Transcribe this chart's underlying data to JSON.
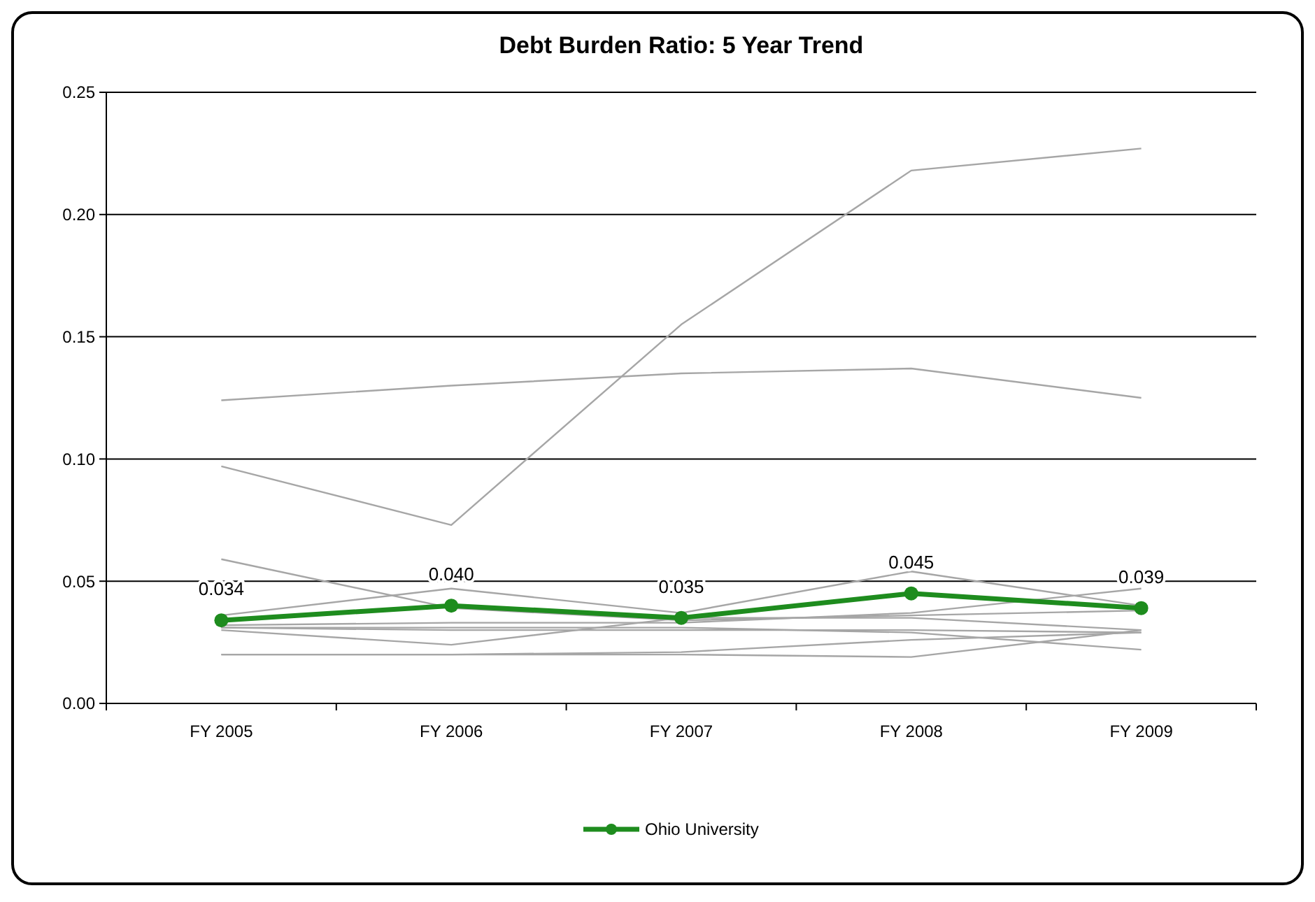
{
  "chart_data": {
    "type": "line",
    "title": "Debt Burden Ratio: 5 Year Trend",
    "categories": [
      "FY 2005",
      "FY 2006",
      "FY 2007",
      "FY 2008",
      "FY 2009"
    ],
    "ylim": [
      0,
      0.25
    ],
    "yticks": [
      {
        "value": 0,
        "label": "0.00"
      },
      {
        "value": 0.05,
        "label": "0.05"
      },
      {
        "value": 0.1,
        "label": "0.10"
      },
      {
        "value": 0.15,
        "label": "0.15"
      },
      {
        "value": 0.2,
        "label": "0.20"
      },
      {
        "value": 0.25,
        "label": "0.25"
      }
    ],
    "grid": "y",
    "legend": "bottom",
    "series": [
      {
        "color": "#a6a6a6",
        "marker": "none",
        "values": [
          0.124,
          0.13,
          0.135,
          0.137,
          0.125
        ]
      },
      {
        "color": "#a6a6a6",
        "marker": "none",
        "values": [
          0.097,
          0.073,
          0.155,
          0.218,
          0.227
        ]
      },
      {
        "color": "#a6a6a6",
        "marker": "none",
        "values": [
          0.059,
          0.039,
          0.034,
          0.036,
          0.038
        ]
      },
      {
        "color": "#a6a6a6",
        "marker": "none",
        "values": [
          0.036,
          0.047,
          0.037,
          0.054,
          0.04
        ]
      },
      {
        "color": "#a6a6a6",
        "marker": "none",
        "values": [
          0.03,
          0.024,
          0.035,
          0.035,
          0.03
        ]
      },
      {
        "color": "#a6a6a6",
        "marker": "none",
        "values": [
          0.031,
          0.03,
          0.03,
          0.03,
          0.029
        ]
      },
      {
        "color": "#a6a6a6",
        "marker": "none",
        "values": [
          0.02,
          0.02,
          0.021,
          0.026,
          0.029
        ]
      },
      {
        "color": "#a6a6a6",
        "marker": "none",
        "values": [
          0.02,
          0.02,
          0.02,
          0.019,
          0.03
        ]
      },
      {
        "color": "#a6a6a6",
        "marker": "none",
        "values": [
          0.032,
          0.033,
          0.033,
          0.037,
          0.047
        ]
      },
      {
        "color": "#a6a6a6",
        "marker": "none",
        "values": [
          0.031,
          0.031,
          0.031,
          0.029,
          0.022
        ]
      },
      {
        "name": "Ohio University",
        "color": "#1e8c1e",
        "marker": "circle",
        "values": [
          0.034,
          0.04,
          0.035,
          0.045,
          0.039
        ],
        "value_labels": [
          "0.034",
          "0.040",
          "0.035",
          "0.045",
          "0.039"
        ]
      }
    ]
  }
}
